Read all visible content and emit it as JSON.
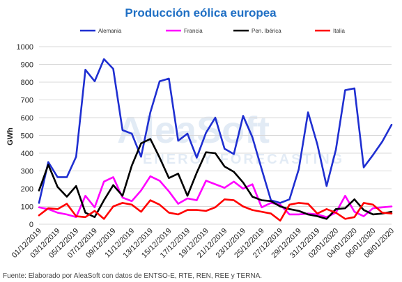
{
  "chart_data": {
    "type": "line",
    "title": "Producción eólica europea",
    "ylabel": "GWh",
    "xlabel": "",
    "ylim": [
      0,
      1000
    ],
    "yticks": [
      0,
      100,
      200,
      300,
      400,
      500,
      600,
      700,
      800,
      900,
      1000
    ],
    "grid": true,
    "legend_position": "top",
    "x": [
      "01/12/2019",
      "02/12/2019",
      "03/12/2019",
      "04/12/2019",
      "05/12/2019",
      "06/12/2019",
      "07/12/2019",
      "08/12/2019",
      "09/12/2019",
      "10/12/2019",
      "11/12/2019",
      "12/12/2019",
      "13/12/2019",
      "14/12/2019",
      "15/12/2019",
      "16/12/2019",
      "17/12/2019",
      "18/12/2019",
      "19/12/2019",
      "20/12/2019",
      "21/12/2019",
      "22/12/2019",
      "23/12/2019",
      "24/12/2019",
      "25/12/2019",
      "26/12/2019",
      "27/12/2019",
      "28/12/2019",
      "29/12/2019",
      "30/12/2019",
      "31/12/2019",
      "01/01/2020",
      "02/01/2020",
      "03/01/2020",
      "04/01/2020",
      "05/01/2020",
      "06/01/2020",
      "07/01/2020",
      "08/01/2020"
    ],
    "x_tick_labels": [
      "01/12/2019",
      "03/12/2019",
      "05/12/2019",
      "07/12/2019",
      "09/12/2019",
      "11/12/2019",
      "13/12/2019",
      "15/12/2019",
      "17/12/2019",
      "19/12/2019",
      "21/12/2019",
      "23/12/2019",
      "25/12/2019",
      "27/12/2019",
      "29/12/2019",
      "31/12/2019",
      "02/01/2020",
      "04/01/2020",
      "06/01/2020",
      "08/01/2020"
    ],
    "series": [
      {
        "name": "Alemania",
        "color": "#1f2fd1",
        "values": [
          120,
          350,
          265,
          265,
          380,
          870,
          805,
          930,
          875,
          530,
          510,
          380,
          630,
          805,
          820,
          470,
          510,
          375,
          515,
          600,
          425,
          395,
          610,
          490,
          310,
          135,
          120,
          140,
          310,
          630,
          450,
          215,
          420,
          755,
          765,
          320,
          390,
          465,
          560
        ]
      },
      {
        "name": "Francia",
        "color": "#ff00ff",
        "values": [
          95,
          85,
          65,
          55,
          40,
          160,
          95,
          240,
          265,
          150,
          130,
          190,
          270,
          245,
          185,
          115,
          145,
          135,
          245,
          225,
          205,
          240,
          200,
          225,
          95,
          120,
          110,
          55,
          55,
          60,
          55,
          40,
          65,
          160,
          70,
          45,
          90,
          95,
          100
        ]
      },
      {
        "name": "Pen. Ibérica",
        "color": "#000000",
        "values": [
          190,
          335,
          210,
          155,
          215,
          65,
          40,
          135,
          220,
          160,
          330,
          455,
          480,
          375,
          260,
          285,
          160,
          290,
          405,
          400,
          325,
          295,
          235,
          155,
          135,
          130,
          100,
          85,
          75,
          55,
          45,
          30,
          85,
          90,
          140,
          80,
          55,
          60,
          70
        ]
      },
      {
        "name": "Italia",
        "color": "#ff0000",
        "values": [
          50,
          90,
          85,
          115,
          45,
          40,
          75,
          30,
          100,
          120,
          110,
          70,
          135,
          110,
          65,
          55,
          80,
          80,
          75,
          95,
          140,
          135,
          100,
          80,
          70,
          60,
          20,
          110,
          120,
          115,
          60,
          85,
          65,
          30,
          40,
          120,
          110,
          65,
          60
        ]
      }
    ]
  },
  "footer": {
    "source": "Fuente: Elaborado por AleaSoft con datos de ENTSO-E, RTE, REN, REE y TERNA."
  },
  "watermark": {
    "brand": "AleaSoft",
    "tagline": "ENERGY FORECASTING"
  }
}
